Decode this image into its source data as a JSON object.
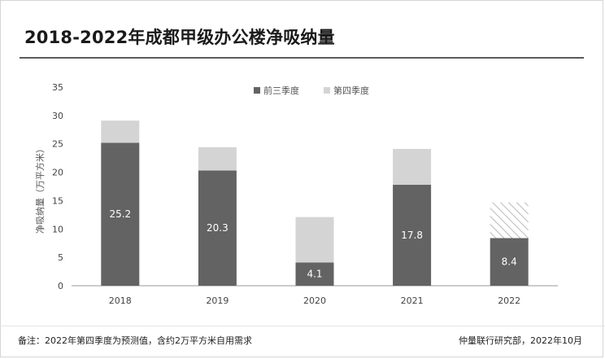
{
  "chart_data": {
    "type": "bar",
    "stacked": true,
    "title": "2018-2022年成都甲级办公楼净吸纳量",
    "ylabel": "净吸纳量（万平方米）",
    "xlabel": "",
    "ylim": [
      0,
      35
    ],
    "yticks": [
      0,
      5,
      10,
      15,
      20,
      25,
      30,
      35
    ],
    "categories": [
      "2018",
      "2019",
      "2020",
      "2021",
      "2022"
    ],
    "series": [
      {
        "name": "前三季度",
        "values": [
          25.2,
          20.3,
          4.1,
          17.8,
          8.4
        ],
        "color": "#636363",
        "data_labels": [
          "25.2",
          "20.3",
          "4.1",
          "17.8",
          "8.4"
        ]
      },
      {
        "name": "第四季度",
        "values": [
          3.9,
          4.1,
          8.0,
          6.3,
          6.3
        ],
        "color": "#d4d4d4",
        "forecast_index": 4
      }
    ],
    "legend_position": "top-right",
    "grid": false
  },
  "footer": {
    "note": "备注：2022年第四季度为预测值，含约2万平方米自用需求",
    "source": "仲量联行研究部，2022年10月"
  }
}
